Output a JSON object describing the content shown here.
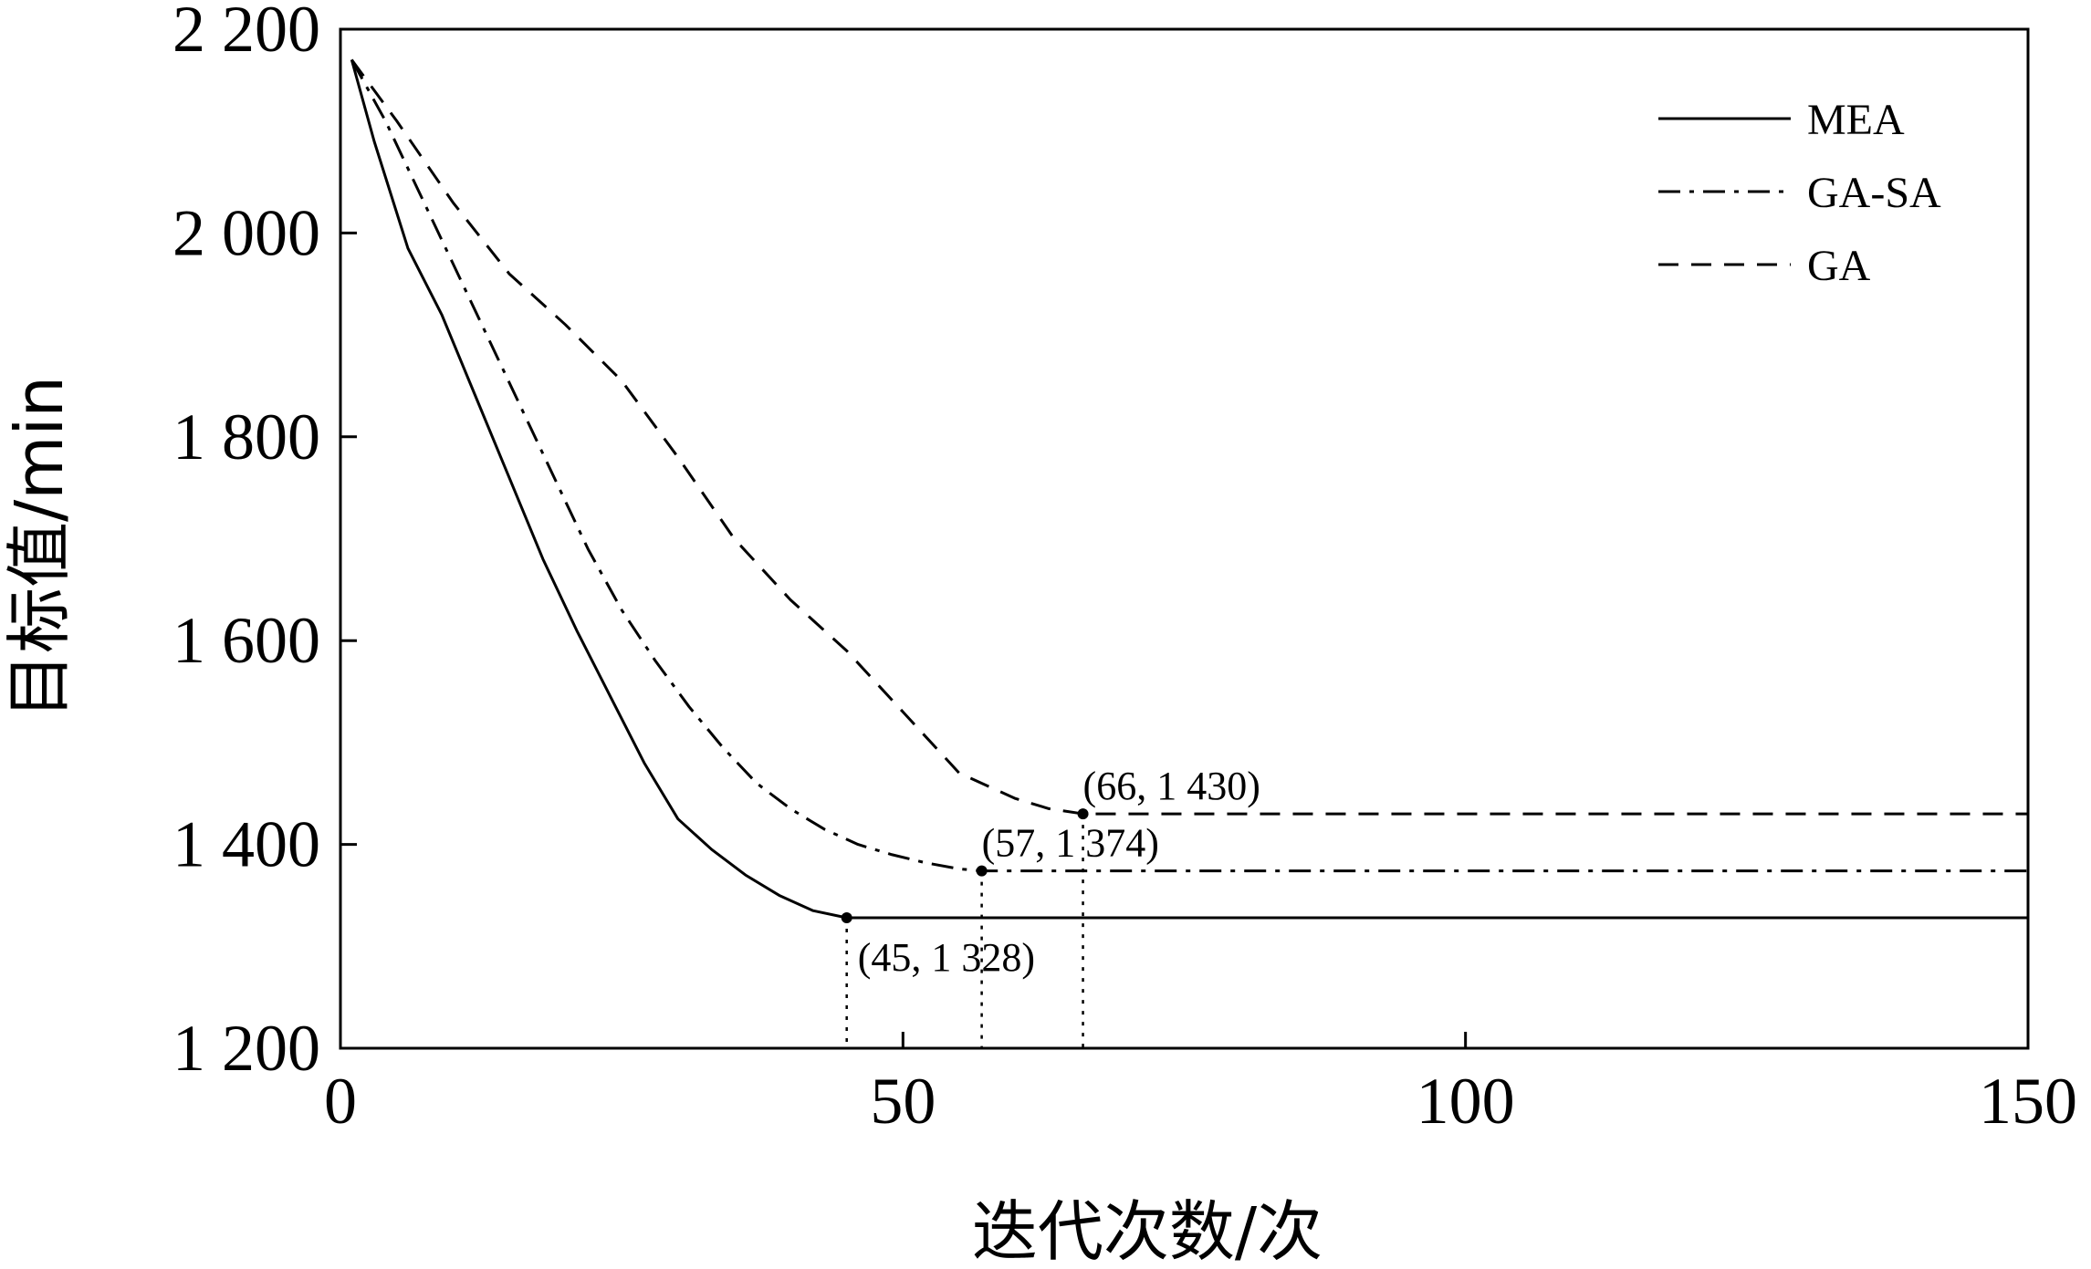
{
  "chart_data": {
    "type": "line",
    "xlabel": "迭代次数/次",
    "ylabel": "目标值/min",
    "xlim": [
      0,
      150
    ],
    "ylim": [
      1200,
      2200
    ],
    "xticks": [
      {
        "value": 0,
        "label": "0"
      },
      {
        "value": 50,
        "label": "50"
      },
      {
        "value": 100,
        "label": "100"
      },
      {
        "value": 150,
        "label": "150"
      }
    ],
    "yticks": [
      {
        "value": 1200,
        "label": "1 200"
      },
      {
        "value": 1400,
        "label": "1 400"
      },
      {
        "value": 1600,
        "label": "1 600"
      },
      {
        "value": 1800,
        "label": "1 800"
      },
      {
        "value": 2000,
        "label": "2 000"
      },
      {
        "value": 2200,
        "label": "2 200"
      }
    ],
    "grid": false,
    "legend_position": "top-right",
    "series": [
      {
        "name": "MEA",
        "style": "solid",
        "x": [
          1,
          3,
          6,
          9,
          12,
          15,
          18,
          21,
          24,
          27,
          30,
          33,
          36,
          39,
          42,
          45,
          150
        ],
        "y": [
          2170,
          2090,
          1985,
          1920,
          1840,
          1760,
          1680,
          1610,
          1545,
          1480,
          1425,
          1395,
          1370,
          1350,
          1335,
          1328,
          1328
        ]
      },
      {
        "name": "GA-SA",
        "style": "dashdot",
        "x": [
          1,
          4,
          7,
          10,
          13,
          16,
          19,
          22,
          25,
          28,
          31,
          34,
          37,
          40,
          43,
          46,
          49,
          52,
          55,
          57,
          150
        ],
        "y": [
          2170,
          2110,
          2040,
          1970,
          1900,
          1830,
          1760,
          1690,
          1630,
          1580,
          1535,
          1495,
          1460,
          1435,
          1415,
          1400,
          1390,
          1382,
          1376,
          1374,
          1374
        ]
      },
      {
        "name": "GA",
        "style": "dashed",
        "x": [
          1,
          5,
          10,
          15,
          20,
          25,
          30,
          35,
          40,
          45,
          50,
          55,
          60,
          63,
          66,
          150
        ],
        "y": [
          2170,
          2110,
          2030,
          1960,
          1910,
          1855,
          1780,
          1700,
          1640,
          1590,
          1530,
          1470,
          1445,
          1435,
          1430,
          1430
        ]
      }
    ],
    "annotations": [
      {
        "x": 45,
        "y": 1328,
        "text": "(45, 1 328)",
        "series": "MEA"
      },
      {
        "x": 57,
        "y": 1374,
        "text": "(57, 1 374)",
        "series": "GA-SA"
      },
      {
        "x": 66,
        "y": 1430,
        "text": "(66, 1 430)",
        "series": "GA"
      }
    ]
  }
}
